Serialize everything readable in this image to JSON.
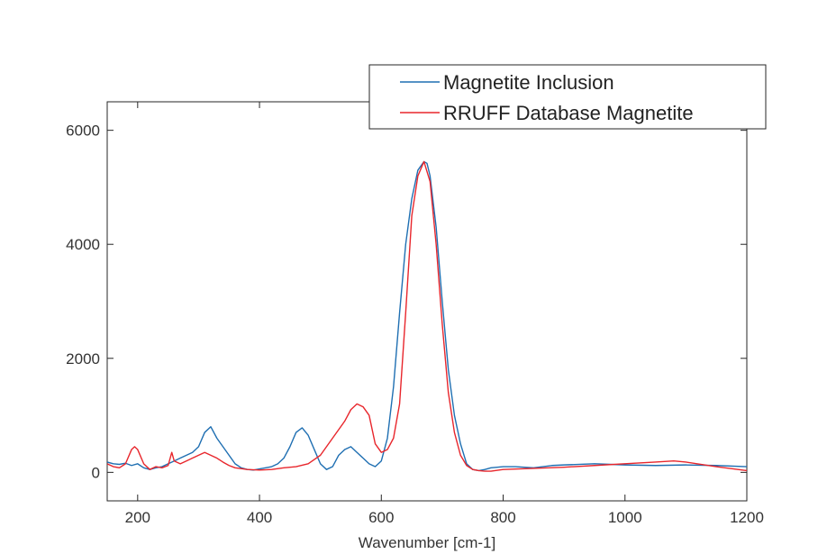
{
  "chart_data": {
    "type": "line",
    "xlabel": "Wavenumber [cm-1]",
    "ylabel": "",
    "xlim": [
      150,
      1200
    ],
    "ylim": [
      -500,
      6500
    ],
    "xticks": [
      200,
      400,
      600,
      800,
      1000,
      1200
    ],
    "yticks": [
      0,
      2000,
      4000,
      6000
    ],
    "grid": false,
    "legend_position": "top-right",
    "series": [
      {
        "name": "Magnetite Inclusion",
        "color": "#1f6fb2",
        "x": [
          150,
          160,
          170,
          180,
          190,
          200,
          210,
          220,
          230,
          240,
          250,
          260,
          270,
          280,
          290,
          300,
          310,
          320,
          330,
          340,
          350,
          360,
          370,
          380,
          390,
          400,
          410,
          420,
          430,
          440,
          450,
          460,
          470,
          480,
          490,
          500,
          510,
          520,
          530,
          540,
          550,
          560,
          570,
          580,
          590,
          600,
          610,
          620,
          630,
          640,
          650,
          660,
          670,
          675,
          680,
          690,
          700,
          710,
          720,
          730,
          740,
          750,
          760,
          770,
          780,
          800,
          820,
          850,
          880,
          900,
          950,
          1000,
          1050,
          1100,
          1150,
          1200
        ],
        "y": [
          180,
          150,
          140,
          160,
          120,
          150,
          80,
          50,
          80,
          100,
          150,
          200,
          250,
          300,
          350,
          450,
          700,
          800,
          600,
          450,
          300,
          150,
          80,
          50,
          40,
          60,
          80,
          100,
          150,
          250,
          450,
          700,
          780,
          650,
          400,
          150,
          50,
          100,
          300,
          400,
          450,
          350,
          250,
          150,
          100,
          200,
          600,
          1500,
          2800,
          4000,
          4800,
          5300,
          5450,
          5420,
          5200,
          4300,
          3000,
          1800,
          1000,
          500,
          150,
          50,
          30,
          50,
          80,
          100,
          100,
          80,
          120,
          130,
          150,
          130,
          120,
          130,
          120,
          100
        ]
      },
      {
        "name": "RRUFF Database Magnetite",
        "color": "#e8262c",
        "x": [
          150,
          160,
          170,
          180,
          190,
          195,
          200,
          210,
          220,
          230,
          240,
          250,
          256,
          260,
          270,
          280,
          290,
          300,
          310,
          320,
          330,
          340,
          350,
          360,
          380,
          400,
          420,
          440,
          460,
          480,
          500,
          520,
          540,
          550,
          560,
          570,
          580,
          590,
          600,
          610,
          620,
          630,
          640,
          650,
          660,
          670,
          680,
          690,
          700,
          710,
          720,
          730,
          740,
          750,
          760,
          770,
          780,
          800,
          850,
          900,
          950,
          1000,
          1050,
          1080,
          1100,
          1150,
          1200
        ],
        "y": [
          150,
          100,
          80,
          150,
          400,
          450,
          400,
          150,
          50,
          100,
          80,
          120,
          350,
          200,
          150,
          200,
          250,
          300,
          350,
          300,
          250,
          180,
          120,
          80,
          50,
          40,
          50,
          80,
          100,
          150,
          300,
          600,
          900,
          1100,
          1200,
          1150,
          1000,
          500,
          350,
          400,
          600,
          1200,
          2800,
          4500,
          5200,
          5450,
          5100,
          4000,
          2600,
          1400,
          700,
          300,
          120,
          50,
          30,
          20,
          20,
          50,
          70,
          90,
          120,
          150,
          180,
          200,
          180,
          100,
          30
        ]
      }
    ]
  }
}
